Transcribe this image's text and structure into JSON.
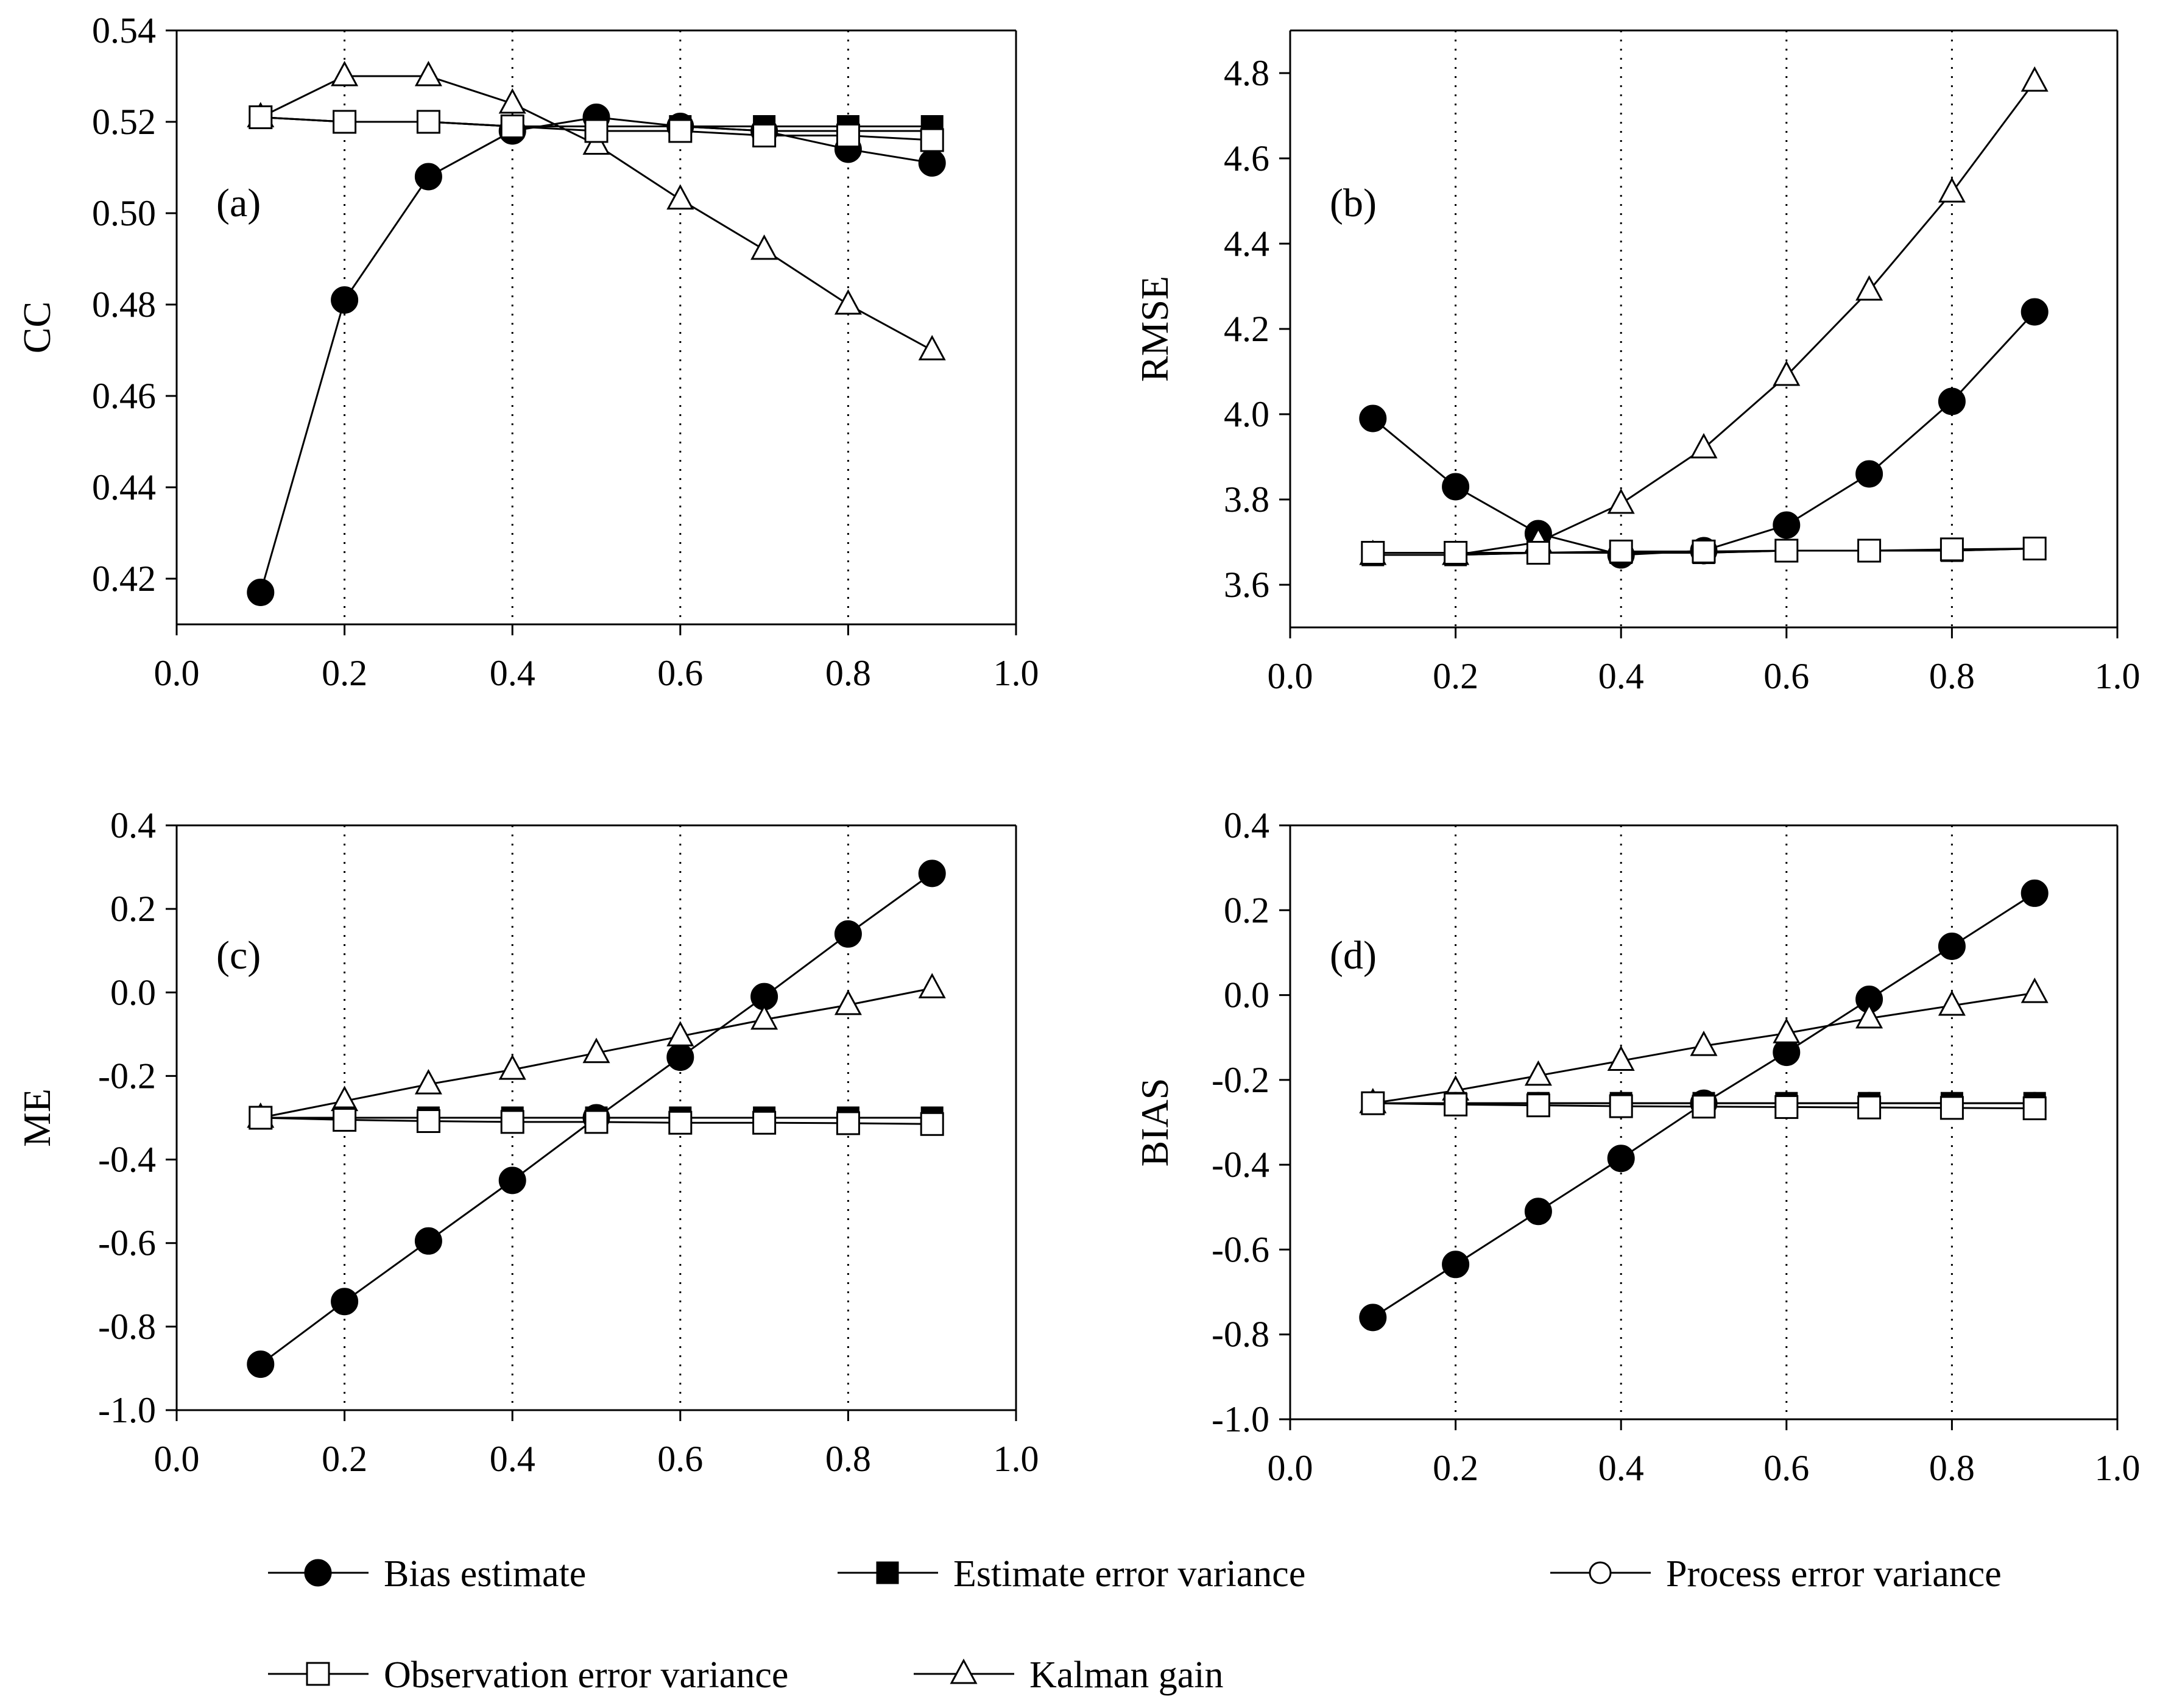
{
  "series_styles": [
    {
      "key": "bias",
      "marker": "filled-circle",
      "color": "#000000"
    },
    {
      "key": "est",
      "marker": "filled-square",
      "color": "#000000"
    },
    {
      "key": "proc",
      "marker": "open-circle",
      "color": "#000000"
    },
    {
      "key": "obs",
      "marker": "open-square",
      "color": "#000000"
    },
    {
      "key": "kal",
      "marker": "open-triangle",
      "color": "#000000"
    }
  ],
  "legend": {
    "items": [
      {
        "key": "bias",
        "label": "Bias estimate"
      },
      {
        "key": "est",
        "label": "Estimate error variance"
      },
      {
        "key": "proc",
        "label": "Process error variance"
      },
      {
        "key": "obs",
        "label": "Observation error variance"
      },
      {
        "key": "kal",
        "label": "Kalman gain"
      }
    ]
  },
  "chart_data": [
    {
      "type": "line",
      "id": "a",
      "tag": "(a)",
      "ylabel": "CC",
      "xlabel": "",
      "xlim": [
        0.0,
        1.0
      ],
      "ylim": [
        0.41,
        0.54
      ],
      "xticks": [
        "0.0",
        "0.2",
        "0.4",
        "0.6",
        "0.8",
        "1.0"
      ],
      "yticks": [
        "0.42",
        "0.44",
        "0.46",
        "0.48",
        "0.50",
        "0.52",
        "0.54"
      ],
      "grid": "dotted vertical",
      "x": [
        0.1,
        0.2,
        0.3,
        0.4,
        0.5,
        0.6,
        0.7,
        0.8,
        0.9
      ],
      "series": [
        {
          "key": "bias",
          "name": "Bias estimate",
          "values": [
            0.417,
            0.481,
            0.508,
            0.518,
            0.521,
            0.519,
            0.518,
            0.514,
            0.511
          ]
        },
        {
          "key": "est",
          "name": "Estimate error variance",
          "values": [
            0.521,
            0.52,
            0.52,
            0.519,
            0.519,
            0.519,
            0.519,
            0.519,
            0.519
          ]
        },
        {
          "key": "proc",
          "name": "Process error variance",
          "values": [
            0.521,
            0.52,
            0.52,
            0.519,
            0.519,
            0.519,
            0.518,
            0.518,
            0.518
          ]
        },
        {
          "key": "obs",
          "name": "Observation error variance",
          "values": [
            0.521,
            0.52,
            0.52,
            0.519,
            0.518,
            0.518,
            0.517,
            0.517,
            0.516
          ]
        },
        {
          "key": "kal",
          "name": "Kalman gain",
          "values": [
            0.521,
            0.53,
            0.53,
            0.524,
            0.515,
            0.503,
            0.492,
            0.48,
            0.47
          ]
        }
      ]
    },
    {
      "type": "line",
      "id": "b",
      "tag": "(b)",
      "ylabel": "RMSE",
      "xlabel": "",
      "xlim": [
        0.0,
        1.0
      ],
      "ylim": [
        3.5,
        4.9
      ],
      "xticks": [
        "0.0",
        "0.2",
        "0.4",
        "0.6",
        "0.8",
        "1.0"
      ],
      "yticks": [
        "3.6",
        "3.8",
        "4.0",
        "4.2",
        "4.4",
        "4.6",
        "4.8"
      ],
      "grid": "dotted vertical",
      "x": [
        0.1,
        0.2,
        0.3,
        0.4,
        0.5,
        0.6,
        0.7,
        0.8,
        0.9
      ],
      "series": [
        {
          "key": "bias",
          "name": "Bias estimate",
          "values": [
            3.99,
            3.83,
            3.72,
            3.67,
            3.68,
            3.74,
            3.86,
            4.03,
            4.24
          ]
        },
        {
          "key": "est",
          "name": "Estimate error variance",
          "values": [
            3.67,
            3.67,
            3.675,
            3.675,
            3.675,
            3.68,
            3.68,
            3.68,
            3.685
          ]
        },
        {
          "key": "proc",
          "name": "Process error variance",
          "values": [
            3.67,
            3.67,
            3.675,
            3.675,
            3.675,
            3.68,
            3.68,
            3.68,
            3.685
          ]
        },
        {
          "key": "obs",
          "name": "Observation error variance",
          "values": [
            3.675,
            3.675,
            3.675,
            3.678,
            3.678,
            3.68,
            3.68,
            3.683,
            3.685
          ]
        },
        {
          "key": "kal",
          "name": "Kalman gain",
          "values": [
            3.67,
            3.67,
            3.7,
            3.79,
            3.92,
            4.09,
            4.29,
            4.52,
            4.78
          ]
        }
      ]
    },
    {
      "type": "line",
      "id": "c",
      "tag": "(c)",
      "ylabel": "ME",
      "xlabel": "",
      "xlim": [
        0.0,
        1.0
      ],
      "ylim": [
        -1.0,
        0.4
      ],
      "xticks": [
        "0.0",
        "0.2",
        "0.4",
        "0.6",
        "0.8",
        "1.0"
      ],
      "yticks": [
        "-1.0",
        "-0.8",
        "-0.6",
        "-0.4",
        "-0.2",
        "0.0",
        "0.2",
        "0.4"
      ],
      "grid": "dotted vertical",
      "x": [
        0.1,
        0.2,
        0.3,
        0.4,
        0.5,
        0.6,
        0.7,
        0.8,
        0.9
      ],
      "series": [
        {
          "key": "bias",
          "name": "Bias estimate",
          "values": [
            -0.89,
            -0.74,
            -0.595,
            -0.45,
            -0.3,
            -0.155,
            -0.01,
            0.14,
            0.285
          ]
        },
        {
          "key": "est",
          "name": "Estimate error variance",
          "values": [
            -0.3,
            -0.3,
            -0.3,
            -0.3,
            -0.3,
            -0.3,
            -0.3,
            -0.3,
            -0.3
          ]
        },
        {
          "key": "proc",
          "name": "Process error variance",
          "values": [
            -0.3,
            -0.3,
            -0.3,
            -0.3,
            -0.3,
            -0.3,
            -0.3,
            -0.3,
            -0.3
          ]
        },
        {
          "key": "obs",
          "name": "Observation error variance",
          "values": [
            -0.3,
            -0.305,
            -0.308,
            -0.31,
            -0.31,
            -0.312,
            -0.312,
            -0.313,
            -0.315
          ]
        },
        {
          "key": "kal",
          "name": "Kalman gain",
          "values": [
            -0.3,
            -0.26,
            -0.22,
            -0.185,
            -0.145,
            -0.105,
            -0.065,
            -0.03,
            0.01
          ]
        }
      ]
    },
    {
      "type": "line",
      "id": "d",
      "tag": "(d)",
      "ylabel": "BIAS",
      "xlabel": "",
      "xlim": [
        0.0,
        1.0
      ],
      "ylim": [
        -1.0,
        0.4
      ],
      "xticks": [
        "0.0",
        "0.2",
        "0.4",
        "0.6",
        "0.8",
        "1.0"
      ],
      "yticks": [
        "-1.0",
        "-0.8",
        "-0.6",
        "-0.4",
        "-0.2",
        "0.0",
        "0.2",
        "0.4"
      ],
      "grid": "dotted vertical",
      "x": [
        0.1,
        0.2,
        0.3,
        0.4,
        0.5,
        0.6,
        0.7,
        0.8,
        0.9
      ],
      "series": [
        {
          "key": "bias",
          "name": "Bias estimate",
          "values": [
            -0.76,
            -0.635,
            -0.51,
            -0.385,
            -0.255,
            -0.135,
            -0.01,
            0.115,
            0.24
          ]
        },
        {
          "key": "est",
          "name": "Estimate error variance",
          "values": [
            -0.255,
            -0.255,
            -0.255,
            -0.255,
            -0.255,
            -0.255,
            -0.255,
            -0.255,
            -0.255
          ]
        },
        {
          "key": "proc",
          "name": "Process error variance",
          "values": [
            -0.255,
            -0.255,
            -0.255,
            -0.255,
            -0.255,
            -0.255,
            -0.255,
            -0.255,
            -0.255
          ]
        },
        {
          "key": "obs",
          "name": "Observation error variance",
          "values": [
            -0.255,
            -0.258,
            -0.26,
            -0.262,
            -0.263,
            -0.264,
            -0.265,
            -0.266,
            -0.267
          ]
        },
        {
          "key": "kal",
          "name": "Kalman gain",
          "values": [
            -0.255,
            -0.225,
            -0.19,
            -0.155,
            -0.12,
            -0.09,
            -0.055,
            -0.025,
            0.005
          ]
        }
      ]
    }
  ]
}
